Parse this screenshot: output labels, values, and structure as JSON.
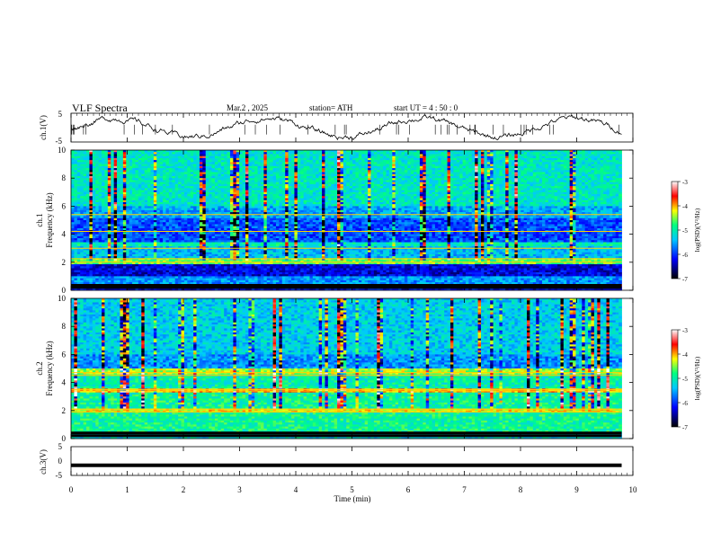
{
  "header": {
    "title": "VLF  Spectra",
    "date": "Mar.2  , 2025",
    "station": "station= ATH",
    "start": "start  UT  =   4  : 50 : 0"
  },
  "chart_data": [
    {
      "type": "line",
      "id": "ch1-waveform",
      "ylabel": "ch.1(V)",
      "ylim": [
        -5,
        5
      ],
      "yticks": [
        "5",
        "-5"
      ],
      "xlim": [
        0,
        10
      ],
      "x_end": 9.8,
      "description_values": "noisy voltage trace fluctuating around about 0 V",
      "baseline": 0,
      "color": "#000000"
    },
    {
      "type": "heatmap",
      "id": "ch1-spectrogram",
      "ylabel": "Frequency (kHz)",
      "channel_label": "ch.1",
      "ylim": [
        0,
        10
      ],
      "yticks": [
        "0",
        "2",
        "4",
        "6",
        "8",
        "10"
      ],
      "xlim": [
        0,
        10
      ],
      "x_end": 9.8,
      "bands": [
        {
          "from": 0.0,
          "to": 0.3,
          "level": 6.2
        },
        {
          "from": 0.3,
          "to": 0.4,
          "level": 3.6
        },
        {
          "from": 0.4,
          "to": 1.0,
          "level": 5.6
        },
        {
          "from": 1.0,
          "to": 1.9,
          "level": 6.3
        },
        {
          "from": 1.9,
          "to": 2.3,
          "level": 4.6
        },
        {
          "from": 2.3,
          "to": 3.1,
          "level": 5.4
        },
        {
          "from": 3.1,
          "to": 3.4,
          "level": 5.0
        },
        {
          "from": 3.4,
          "to": 5.2,
          "level": 5.9
        },
        {
          "from": 5.2,
          "to": 6.0,
          "level": 5.5
        },
        {
          "from": 6.0,
          "to": 10.0,
          "level": 5.1
        }
      ],
      "lines_khz": [
        0.2,
        0.35,
        2.0,
        2.25,
        3.0,
        4.2,
        5.4
      ]
    },
    {
      "type": "heatmap",
      "id": "ch2-spectrogram",
      "ylabel": "Frequency (kHz)",
      "channel_label": "ch.2",
      "ylim": [
        0,
        10
      ],
      "yticks": [
        "0",
        "2",
        "4",
        "6",
        "8",
        "10"
      ],
      "xlim": [
        0,
        10
      ],
      "x_end": 9.8,
      "bands": [
        {
          "from": 0.0,
          "to": 0.4,
          "level": 5.2
        },
        {
          "from": 0.4,
          "to": 1.8,
          "level": 4.9
        },
        {
          "from": 1.8,
          "to": 2.2,
          "level": 4.2
        },
        {
          "from": 2.2,
          "to": 3.3,
          "level": 4.9
        },
        {
          "from": 3.3,
          "to": 3.6,
          "level": 4.0
        },
        {
          "from": 3.6,
          "to": 4.6,
          "level": 5.0
        },
        {
          "from": 4.6,
          "to": 5.0,
          "level": 4.4
        },
        {
          "from": 5.0,
          "to": 6.0,
          "level": 5.6
        },
        {
          "from": 6.0,
          "to": 10.0,
          "level": 5.3
        }
      ],
      "lines_khz": [
        0.2,
        0.4,
        1.9,
        2.1,
        3.4,
        3.5,
        4.5,
        4.7
      ]
    },
    {
      "type": "line",
      "id": "ch3-waveform",
      "ylabel": "ch.3(V)",
      "ylim": [
        -5,
        5
      ],
      "yticks": [
        "5",
        "0",
        "-5"
      ],
      "xlim": [
        0,
        10
      ],
      "x_end": 9.8,
      "baseline": -1.5,
      "color": "#000000"
    }
  ],
  "xaxis": {
    "label": "Time  (min)",
    "ticks": [
      "0",
      "1",
      "2",
      "3",
      "4",
      "5",
      "6",
      "7",
      "8",
      "9",
      "10"
    ]
  },
  "colorbars": [
    {
      "label": "log(PSD)(V²/Hz)",
      "range": [
        -7,
        -3
      ],
      "ticks": [
        "-3",
        "-4",
        "-5",
        "-6",
        "-7"
      ]
    },
    {
      "label": "log(PSD)(V²/Hz)",
      "range": [
        -7,
        -3
      ],
      "ticks": [
        "-3",
        "-4",
        "-5",
        "-6",
        "-7"
      ]
    }
  ],
  "colors": {
    "scale": [
      "#000000",
      "#0000ff",
      "#00c8ff",
      "#00ff80",
      "#ffff00",
      "#ff0000",
      "#ffffff"
    ]
  }
}
